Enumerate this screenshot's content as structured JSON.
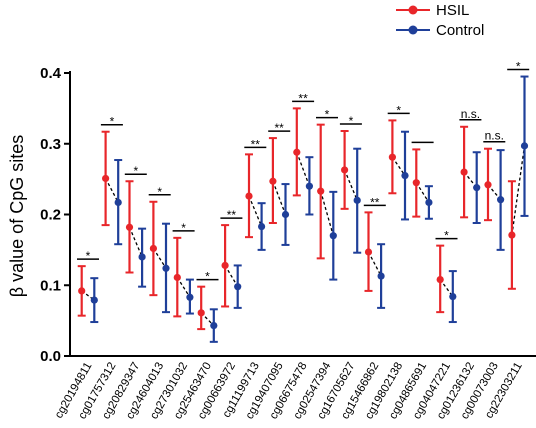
{
  "chart_data": {
    "type": "scatter",
    "ylabel": "β value of CpG sites",
    "ylim": [
      0,
      0.4
    ],
    "yticks": [
      "0.0",
      "0.1",
      "0.2",
      "0.3",
      "0.4"
    ],
    "grid": false,
    "legend_position": "top-right",
    "categories": [
      "cg20194811",
      "cg01757312",
      "cg20829347",
      "cg24604013",
      "cg27301032",
      "cg25463470",
      "cg00663972",
      "cg11199713",
      "cg19407095",
      "cg06675478",
      "cg02547394",
      "cg16705627",
      "cg15466862",
      "cg19802138",
      "cg04865691",
      "cg04047221",
      "cg01236132",
      "cg00073003",
      "cg22303211"
    ],
    "significance": [
      "*",
      "*",
      "*",
      "*",
      "*",
      "*",
      "**",
      "**",
      "**",
      "**",
      "*",
      "*",
      "**",
      "*",
      "",
      "*",
      "n.s.",
      "n.s.",
      "*"
    ],
    "series": [
      {
        "name": "HSIL",
        "color": "#e8262a",
        "values": [
          0.092,
          0.251,
          0.182,
          0.152,
          0.111,
          0.061,
          0.128,
          0.226,
          0.247,
          0.288,
          0.233,
          0.263,
          0.147,
          0.281,
          0.245,
          0.108,
          0.26,
          0.242,
          0.171
        ],
        "err_low": [
          0.057,
          0.185,
          0.118,
          0.086,
          0.056,
          0.038,
          0.07,
          0.168,
          0.188,
          0.227,
          0.138,
          0.208,
          0.092,
          0.23,
          0.197,
          0.062,
          0.196,
          0.192,
          0.095
        ],
        "err_high": [
          0.127,
          0.317,
          0.247,
          0.218,
          0.167,
          0.098,
          0.185,
          0.285,
          0.308,
          0.35,
          0.327,
          0.318,
          0.203,
          0.333,
          0.292,
          0.156,
          0.324,
          0.293,
          0.247
        ]
      },
      {
        "name": "Control",
        "color": "#1f3f99",
        "values": [
          0.079,
          0.217,
          0.14,
          0.124,
          0.083,
          0.043,
          0.098,
          0.183,
          0.2,
          0.24,
          0.17,
          0.22,
          0.113,
          0.255,
          0.217,
          0.084,
          0.238,
          0.221,
          0.297
        ],
        "err_low": [
          0.048,
          0.158,
          0.098,
          0.062,
          0.06,
          0.02,
          0.068,
          0.15,
          0.157,
          0.2,
          0.108,
          0.146,
          0.068,
          0.193,
          0.194,
          0.048,
          0.188,
          0.15,
          0.198
        ],
        "err_high": [
          0.11,
          0.277,
          0.18,
          0.187,
          0.108,
          0.066,
          0.128,
          0.216,
          0.243,
          0.281,
          0.232,
          0.293,
          0.158,
          0.317,
          0.24,
          0.12,
          0.288,
          0.291,
          0.395
        ]
      }
    ]
  }
}
